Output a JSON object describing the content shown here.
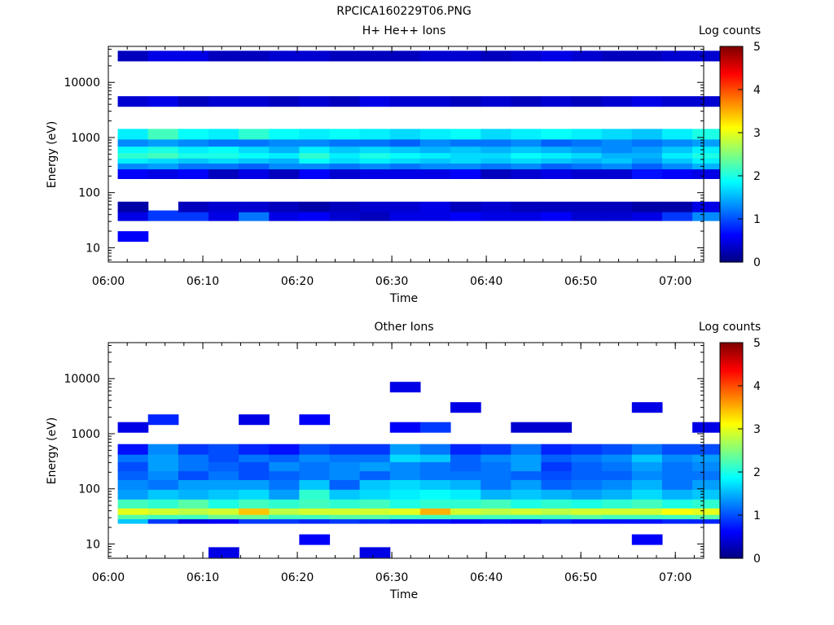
{
  "page_title": "RPCICA160229T06.PNG",
  "chart_data": [
    {
      "type": "heatmap",
      "title": "H+ He++ Ions",
      "xlabel": "Time",
      "ylabel": "Energy (eV)",
      "y_scale": "log",
      "ylim": [
        5.5,
        45000
      ],
      "xlim": [
        "06:00",
        "07:03"
      ],
      "x_ticks": [
        "06:00",
        "06:10",
        "06:20",
        "06:30",
        "06:40",
        "06:50",
        "07:00"
      ],
      "y_ticks": [
        "10",
        "100",
        "1000",
        "10000"
      ],
      "colorbar": {
        "label": "Log counts",
        "range": [
          0,
          5
        ],
        "ticks": [
          "0",
          "1",
          "2",
          "3",
          "4",
          "5"
        ],
        "colormap": "jet"
      },
      "time_bins_start_min": [
        1,
        4.2,
        7.4,
        10.6,
        13.8,
        17.0,
        20.2,
        23.4,
        26.6,
        29.8,
        33.0,
        36.2,
        39.4,
        42.6,
        45.8,
        49.0,
        52.2,
        55.4,
        58.6,
        61.8
      ],
      "time_bin_width_min": 3.2,
      "energy_bands_log_counts": [
        {
          "energy_ev": 16,
          "counts": [
            0.6,
            0,
            0,
            0,
            0,
            0,
            0,
            0,
            0,
            0,
            0,
            0,
            0,
            0,
            0,
            0,
            0,
            0,
            0,
            0
          ]
        },
        {
          "energy_ev": 38,
          "counts": [
            0.5,
            0.9,
            0.9,
            0.5,
            1.2,
            0.5,
            0.6,
            0.4,
            0.3,
            0.5,
            0.5,
            0.6,
            0.5,
            0.5,
            0.6,
            0.4,
            0.4,
            0.5,
            0.9,
            1.3
          ]
        },
        {
          "energy_ev": 55,
          "counts": [
            0.2,
            0,
            0.3,
            0.4,
            0.4,
            0.3,
            0.2,
            0.3,
            0.4,
            0.4,
            0.5,
            0.3,
            0.4,
            0.3,
            0.3,
            0.3,
            0.3,
            0.2,
            0.2,
            0.5
          ]
        },
        {
          "energy_ev": 220,
          "counts": [
            0.6,
            0.5,
            0.6,
            0.3,
            0.5,
            0.3,
            0.6,
            0.4,
            0.5,
            0.5,
            0.5,
            0.6,
            0.3,
            0.4,
            0.5,
            0.4,
            0.4,
            0.7,
            0.6,
            0.5
          ]
        },
        {
          "energy_ev": 330,
          "counts": [
            1.3,
            1.4,
            1.2,
            1.2,
            1.1,
            1.3,
            1.3,
            1.2,
            1.3,
            1.2,
            1.3,
            1.3,
            1.2,
            1.3,
            1.1,
            1.2,
            1.3,
            1.1,
            1.3,
            1.5
          ]
        },
        {
          "energy_ev": 420,
          "counts": [
            1.8,
            1.7,
            1.6,
            1.7,
            1.6,
            1.5,
            1.9,
            1.7,
            1.8,
            1.7,
            1.6,
            1.7,
            1.6,
            1.7,
            1.6,
            1.5,
            1.6,
            1.4,
            1.6,
            1.8
          ]
        },
        {
          "energy_ev": 520,
          "counts": [
            2.1,
            2.2,
            2.0,
            2.0,
            1.9,
            1.8,
            2.1,
            1.8,
            2.0,
            1.9,
            1.8,
            1.7,
            1.7,
            1.9,
            1.8,
            1.7,
            1.5,
            1.5,
            1.8,
            2.0
          ]
        },
        {
          "energy_ev": 650,
          "counts": [
            1.9,
            2.0,
            1.8,
            1.9,
            1.7,
            1.5,
            1.8,
            1.6,
            1.7,
            1.6,
            1.5,
            1.6,
            1.5,
            1.6,
            1.5,
            1.4,
            1.3,
            1.4,
            1.6,
            1.8
          ]
        },
        {
          "energy_ev": 850,
          "counts": [
            1.3,
            1.4,
            1.3,
            1.2,
            1.2,
            1.3,
            1.3,
            1.2,
            1.2,
            1.1,
            1.3,
            1.2,
            1.2,
            1.3,
            1.1,
            1.2,
            1.3,
            1.2,
            1.3,
            1.4
          ]
        },
        {
          "energy_ev": 1150,
          "counts": [
            1.8,
            2.2,
            1.9,
            1.8,
            2.1,
            1.9,
            1.8,
            1.9,
            1.8,
            1.7,
            1.8,
            1.9,
            1.7,
            1.8,
            1.9,
            1.8,
            1.7,
            1.6,
            1.8,
            2.0
          ]
        },
        {
          "energy_ev": 4500,
          "counts": [
            0.4,
            0.5,
            0.3,
            0.4,
            0.4,
            0.3,
            0.4,
            0.3,
            0.5,
            0.4,
            0.4,
            0.3,
            0.4,
            0.3,
            0.4,
            0.3,
            0.4,
            0.5,
            0.4,
            0.4
          ]
        },
        {
          "energy_ev": 30000,
          "counts": [
            0.3,
            0.5,
            0.5,
            0.3,
            0.3,
            0.4,
            0.4,
            0.3,
            0.3,
            0.3,
            0.4,
            0.4,
            0.3,
            0.4,
            0.5,
            0.4,
            0.3,
            0.3,
            0.4,
            0.4
          ]
        }
      ]
    },
    {
      "type": "heatmap",
      "title": "Other Ions",
      "xlabel": "Time",
      "ylabel": "Energy (eV)",
      "y_scale": "log",
      "ylim": [
        5.5,
        45000
      ],
      "xlim": [
        "06:00",
        "07:03"
      ],
      "x_ticks": [
        "06:00",
        "06:10",
        "06:20",
        "06:30",
        "06:40",
        "06:50",
        "07:00"
      ],
      "y_ticks": [
        "10",
        "100",
        "1000",
        "10000"
      ],
      "colorbar": {
        "label": "Log counts",
        "range": [
          0,
          5
        ],
        "ticks": [
          "0",
          "1",
          "2",
          "3",
          "4",
          "5"
        ],
        "colormap": "jet"
      },
      "time_bins_start_min": [
        1,
        4.2,
        7.4,
        10.6,
        13.8,
        17.0,
        20.2,
        23.4,
        26.6,
        29.8,
        33.0,
        36.2,
        39.4,
        42.6,
        45.8,
        49.0,
        52.2,
        55.4,
        58.6,
        61.8
      ],
      "time_bin_width_min": 3.2,
      "energy_bands_log_counts": [
        {
          "energy_ev": 7,
          "counts": [
            0,
            0,
            0,
            0.5,
            0,
            0,
            0,
            0,
            0.5,
            0,
            0,
            0,
            0,
            0,
            0,
            0,
            0,
            0,
            0,
            0
          ]
        },
        {
          "energy_ev": 12,
          "counts": [
            0,
            0,
            0,
            0,
            0,
            0,
            0.6,
            0,
            0,
            0,
            0,
            0,
            0,
            0,
            0,
            0,
            0,
            0.6,
            0,
            0
          ]
        },
        {
          "energy_ev": 29,
          "counts": [
            1.6,
            0.9,
            0.5,
            0.6,
            0.9,
            0.9,
            0.8,
            0.9,
            0.8,
            0.7,
            0.7,
            0.6,
            0.7,
            0.6,
            0.8,
            0.7,
            0.7,
            0.7,
            0.8,
            0.8
          ]
        },
        {
          "energy_ev": 35,
          "counts": [
            2.3,
            2.2,
            2.2,
            2.4,
            2.4,
            2.2,
            2.2,
            2.3,
            2.3,
            2.2,
            2.2,
            2.2,
            2.2,
            2.2,
            2.2,
            2.3,
            2.2,
            2.2,
            2.2,
            2.3
          ]
        },
        {
          "energy_ev": 42,
          "counts": [
            3.0,
            2.9,
            2.8,
            2.9,
            3.4,
            2.8,
            2.9,
            2.9,
            2.9,
            3.0,
            3.5,
            2.9,
            2.8,
            2.9,
            2.8,
            2.9,
            2.9,
            2.9,
            3.1,
            3.0
          ]
        },
        {
          "energy_ev": 55,
          "counts": [
            2.2,
            2.1,
            2.3,
            2.0,
            2.2,
            2.1,
            2.2,
            2.1,
            2.2,
            2.0,
            2.1,
            2.1,
            2.2,
            2.0,
            2.1,
            2.0,
            2.1,
            2.2,
            2.0,
            2.1
          ]
        },
        {
          "energy_ev": 80,
          "counts": [
            1.4,
            1.6,
            1.5,
            1.6,
            1.7,
            1.4,
            2.1,
            1.6,
            1.7,
            1.8,
            1.9,
            1.8,
            1.5,
            1.6,
            1.5,
            1.4,
            1.5,
            1.7,
            1.5,
            1.6
          ]
        },
        {
          "energy_ev": 120,
          "counts": [
            1.3,
            1.2,
            1.4,
            1.4,
            1.4,
            1.2,
            1.6,
            1.1,
            1.6,
            1.7,
            1.6,
            1.5,
            1.2,
            1.4,
            1.1,
            1.2,
            1.3,
            1.5,
            1.2,
            1.4
          ]
        },
        {
          "energy_ev": 180,
          "counts": [
            1.1,
            1.3,
            1.0,
            1.2,
            1.0,
            1.1,
            1.2,
            1.3,
            1.1,
            1.3,
            1.2,
            1.2,
            1.2,
            1.1,
            1.0,
            1.1,
            1.1,
            1.3,
            1.2,
            1.2
          ]
        },
        {
          "energy_ev": 260,
          "counts": [
            1.0,
            1.4,
            1.2,
            1.1,
            1.0,
            1.3,
            1.2,
            1.3,
            1.4,
            1.3,
            1.2,
            1.1,
            1.2,
            1.4,
            0.9,
            1.1,
            1.2,
            1.4,
            1.2,
            1.3
          ]
        },
        {
          "energy_ev": 380,
          "counts": [
            1.2,
            1.4,
            1.2,
            1.0,
            1.2,
            1.1,
            1.3,
            1.2,
            1.2,
            1.7,
            1.6,
            1.1,
            1.3,
            1.4,
            1.1,
            1.2,
            1.3,
            1.6,
            1.3,
            1.4
          ]
        },
        {
          "energy_ev": 520,
          "counts": [
            0.7,
            1.3,
            0.9,
            1.0,
            0.8,
            0.7,
            1.0,
            0.9,
            0.9,
            1.4,
            1.2,
            0.8,
            0.9,
            1.2,
            0.8,
            0.9,
            1.0,
            1.2,
            1.0,
            1.0
          ]
        },
        {
          "energy_ev": 1300,
          "counts": [
            0.5,
            0,
            0,
            0,
            0,
            0,
            0,
            0,
            0,
            0.6,
            0.9,
            0,
            0,
            0.4,
            0.4,
            0,
            0,
            0,
            0,
            0.5
          ]
        },
        {
          "energy_ev": 1800,
          "counts": [
            0,
            0.8,
            0,
            0,
            0.5,
            0,
            0.6,
            0,
            0,
            0,
            0,
            0,
            0,
            0,
            0,
            0,
            0,
            0,
            0,
            0
          ]
        },
        {
          "energy_ev": 3000,
          "counts": [
            0,
            0,
            0,
            0,
            0,
            0,
            0,
            0,
            0,
            0,
            0,
            0.5,
            0,
            0,
            0,
            0,
            0,
            0.5,
            0,
            0
          ]
        },
        {
          "energy_ev": 7000,
          "counts": [
            0,
            0,
            0,
            0,
            0,
            0,
            0,
            0,
            0,
            0.5,
            0,
            0,
            0,
            0,
            0,
            0,
            0,
            0,
            0,
            0
          ]
        }
      ]
    }
  ]
}
